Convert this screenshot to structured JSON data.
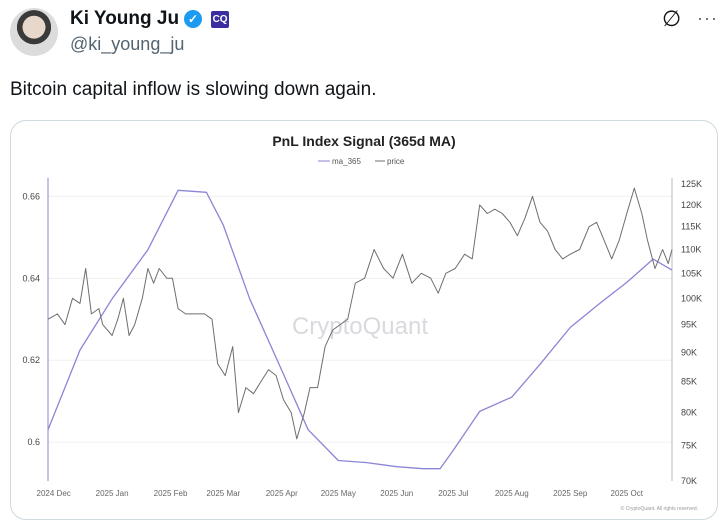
{
  "tweet": {
    "author_name": "Ki Young Ju",
    "handle": "@ki_young_ju",
    "verified_icon": "check",
    "affiliate_badge": "CQ",
    "grok_icon": "∅",
    "more_icon": "···",
    "text": "Bitcoin capital inflow is slowing down again."
  },
  "colors": {
    "ma_365": "#8b85d6",
    "price": "#6e6e6e"
  },
  "chart_data": {
    "type": "line",
    "title": "PnL Index Signal (365d MA)",
    "watermark": "CryptoQuant",
    "copyright": "© CryptoQuant. All rights reserved.",
    "legend": [
      "ma_365",
      "price"
    ],
    "legend_position": "top-center",
    "x_ticks": [
      "2024 Dec",
      "2025 Jan",
      "2025 Feb",
      "2025 Mar",
      "2025 Apr",
      "2025 May",
      "2025 Jun",
      "2025 Jul",
      "2025 Aug",
      "2025 Sep",
      "2025 Oct"
    ],
    "x_tick_days": [
      0,
      31,
      62,
      90,
      121,
      151,
      182,
      212,
      243,
      274,
      304
    ],
    "x_unit": "days since 2024-12-01",
    "left_axis": {
      "ticks": [
        "0.6",
        "0.62",
        "0.64",
        "0.66"
      ],
      "tick_values": [
        0.6,
        0.62,
        0.64,
        0.66
      ],
      "range": [
        0.5905,
        0.6645
      ]
    },
    "right_axis": {
      "scale": "log",
      "ticks": [
        "70K",
        "75K",
        "80K",
        "85K",
        "90K",
        "95K",
        "100K",
        "105K",
        "110K",
        "115K",
        "120K",
        "125K"
      ],
      "tick_values": [
        70,
        75,
        80,
        85,
        90,
        95,
        100,
        105,
        110,
        115,
        120,
        125
      ],
      "range": [
        70,
        125
      ]
    },
    "series": [
      {
        "name": "ma_365",
        "axis": "left",
        "points": [
          [
            -3,
            0.603
          ],
          [
            14,
            0.6225
          ],
          [
            31,
            0.635
          ],
          [
            50,
            0.647
          ],
          [
            66,
            0.6615
          ],
          [
            81,
            0.661
          ],
          [
            90,
            0.653
          ],
          [
            104,
            0.635
          ],
          [
            121,
            0.6175
          ],
          [
            135,
            0.603
          ],
          [
            151,
            0.5955
          ],
          [
            166,
            0.595
          ],
          [
            182,
            0.594
          ],
          [
            196,
            0.5935
          ],
          [
            205,
            0.5935
          ],
          [
            212,
            0.598
          ],
          [
            226,
            0.6075
          ],
          [
            243,
            0.611
          ],
          [
            258,
            0.619
          ],
          [
            274,
            0.628
          ],
          [
            290,
            0.634
          ],
          [
            304,
            0.639
          ],
          [
            318,
            0.6447
          ],
          [
            328,
            0.642
          ]
        ]
      },
      {
        "name": "price",
        "axis": "right",
        "points": [
          [
            -3,
            96
          ],
          [
            2,
            97
          ],
          [
            6,
            95
          ],
          [
            10,
            100
          ],
          [
            14,
            99
          ],
          [
            17,
            106
          ],
          [
            20,
            97
          ],
          [
            24,
            98
          ],
          [
            26,
            95
          ],
          [
            31,
            93
          ],
          [
            34,
            96
          ],
          [
            37,
            100
          ],
          [
            40,
            93
          ],
          [
            43,
            95
          ],
          [
            47,
            100
          ],
          [
            50,
            106
          ],
          [
            53,
            103
          ],
          [
            56,
            106
          ],
          [
            60,
            104
          ],
          [
            63,
            104
          ],
          [
            66,
            98
          ],
          [
            70,
            97
          ],
          [
            75,
            97
          ],
          [
            80,
            97
          ],
          [
            84,
            96
          ],
          [
            87,
            88
          ],
          [
            91,
            86
          ],
          [
            95,
            91
          ],
          [
            98,
            80
          ],
          [
            102,
            84
          ],
          [
            106,
            83
          ],
          [
            110,
            85
          ],
          [
            114,
            87
          ],
          [
            118,
            86
          ],
          [
            122,
            82
          ],
          [
            126,
            80
          ],
          [
            129,
            76
          ],
          [
            133,
            80
          ],
          [
            136,
            84
          ],
          [
            140,
            84
          ],
          [
            144,
            91
          ],
          [
            148,
            94
          ],
          [
            152,
            95
          ],
          [
            156,
            96
          ],
          [
            160,
            103
          ],
          [
            165,
            104
          ],
          [
            170,
            110
          ],
          [
            175,
            106
          ],
          [
            180,
            104
          ],
          [
            185,
            109
          ],
          [
            190,
            103
          ],
          [
            195,
            105
          ],
          [
            200,
            104
          ],
          [
            204,
            101
          ],
          [
            208,
            105
          ],
          [
            213,
            106
          ],
          [
            218,
            109
          ],
          [
            222,
            108
          ],
          [
            226,
            120
          ],
          [
            230,
            118
          ],
          [
            234,
            119
          ],
          [
            238,
            118
          ],
          [
            242,
            116
          ],
          [
            246,
            113
          ],
          [
            250,
            117
          ],
          [
            254,
            122
          ],
          [
            258,
            116
          ],
          [
            262,
            114
          ],
          [
            266,
            110
          ],
          [
            270,
            108
          ],
          [
            274,
            109
          ],
          [
            279,
            110
          ],
          [
            284,
            115
          ],
          [
            288,
            116
          ],
          [
            292,
            112
          ],
          [
            296,
            108
          ],
          [
            300,
            112
          ],
          [
            304,
            118
          ],
          [
            308,
            124
          ],
          [
            312,
            118
          ],
          [
            315,
            112
          ],
          [
            319,
            106
          ],
          [
            323,
            110
          ],
          [
            326,
            107
          ],
          [
            328,
            110
          ]
        ]
      }
    ]
  }
}
